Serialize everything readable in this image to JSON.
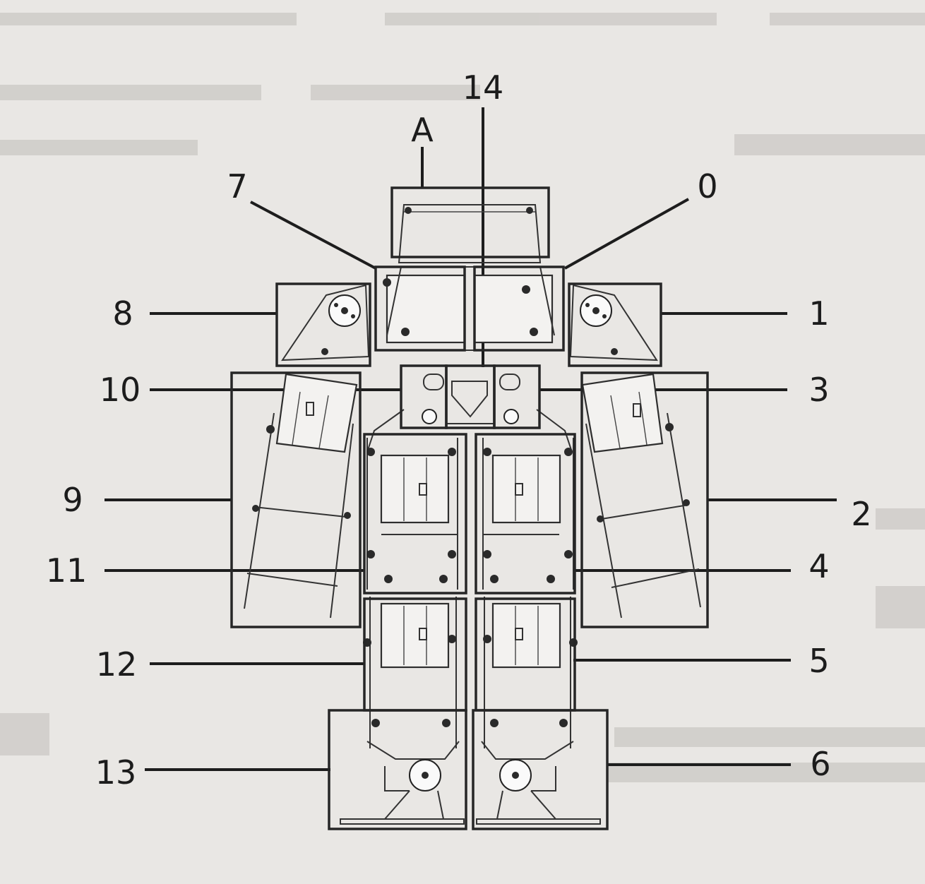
{
  "labels": {
    "top": "14",
    "head": "A",
    "upper_left": "7",
    "upper_right": "0",
    "left_shoulder": "8",
    "right_shoulder": "1",
    "left_hip_servo": "10",
    "right_hip_servo": "3",
    "left_arm": "9",
    "right_arm": "2",
    "left_thigh": "11",
    "right_thigh": "4",
    "left_shin": "12",
    "right_shin": "5",
    "left_foot": "13",
    "right_foot": "6"
  },
  "colors": {
    "paper": "#e9e7e4",
    "ink": "#1d1d1d"
  }
}
